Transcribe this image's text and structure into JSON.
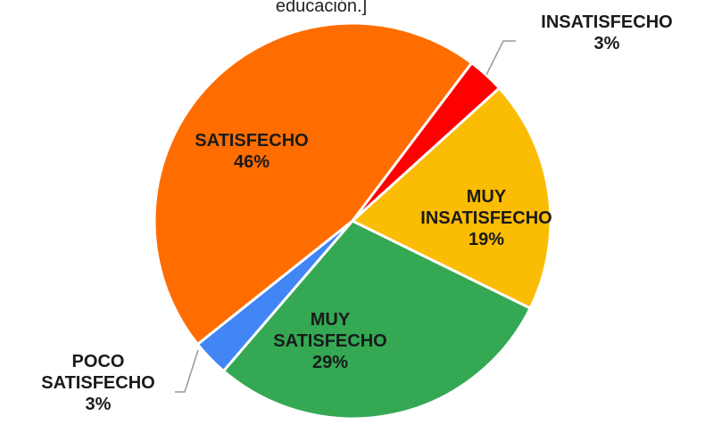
{
  "chart_data": {
    "type": "pie",
    "title": "educación.]",
    "categories": [
      "INSATISFECHO",
      "MUY INSATISFECHO",
      "MUY SATISFECHO",
      "POCO SATISFECHO",
      "SATISFECHO"
    ],
    "values": [
      3,
      19,
      29,
      3,
      46
    ],
    "value_labels": [
      "3%",
      "19%",
      "29%",
      "3%",
      "46%"
    ],
    "colors": [
      "#ff0000",
      "#fbbc04",
      "#34a853",
      "#4285f4",
      "#ff6d01"
    ]
  }
}
